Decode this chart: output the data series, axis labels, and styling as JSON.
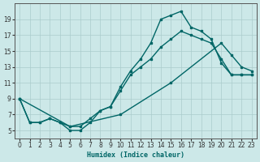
{
  "xlabel": "Humidex (Indice chaleur)",
  "background_color": "#cce8e8",
  "grid_color": "#aacccc",
  "line_color": "#006666",
  "xlim": [
    -0.5,
    23.5
  ],
  "ylim": [
    4,
    21
  ],
  "xticks": [
    0,
    1,
    2,
    3,
    4,
    5,
    6,
    7,
    8,
    9,
    10,
    11,
    12,
    13,
    14,
    15,
    16,
    17,
    18,
    19,
    20,
    21,
    22,
    23
  ],
  "yticks": [
    5,
    7,
    9,
    11,
    13,
    15,
    17,
    19
  ],
  "line1_x": [
    0,
    1,
    2,
    3,
    4,
    5,
    6,
    7,
    8,
    9,
    10,
    11,
    12,
    13,
    14,
    15,
    16,
    17,
    18,
    19,
    20,
    21,
    22,
    23
  ],
  "line1_y": [
    9,
    6,
    6,
    6.5,
    6,
    5,
    5,
    6,
    7.5,
    8,
    10.5,
    12.5,
    14,
    16,
    19,
    19.5,
    20,
    18,
    17.5,
    16.5,
    13.5,
    12,
    12,
    12
  ],
  "line2_x": [
    0,
    1,
    2,
    3,
    4,
    5,
    6,
    7,
    8,
    9,
    10,
    11,
    12,
    13,
    14,
    15,
    16,
    17,
    18,
    19,
    20,
    21,
    22,
    23
  ],
  "line2_y": [
    9,
    6,
    6,
    6.5,
    6,
    5.5,
    5.5,
    6.5,
    7.5,
    8,
    10,
    12,
    13,
    14,
    15.5,
    16.5,
    17.5,
    17,
    16.5,
    16,
    14,
    12,
    12,
    12
  ],
  "line3_x": [
    0,
    5,
    10,
    15,
    20,
    21,
    22,
    23
  ],
  "line3_y": [
    9,
    5.5,
    7,
    11,
    16,
    14.5,
    13,
    12.5
  ]
}
